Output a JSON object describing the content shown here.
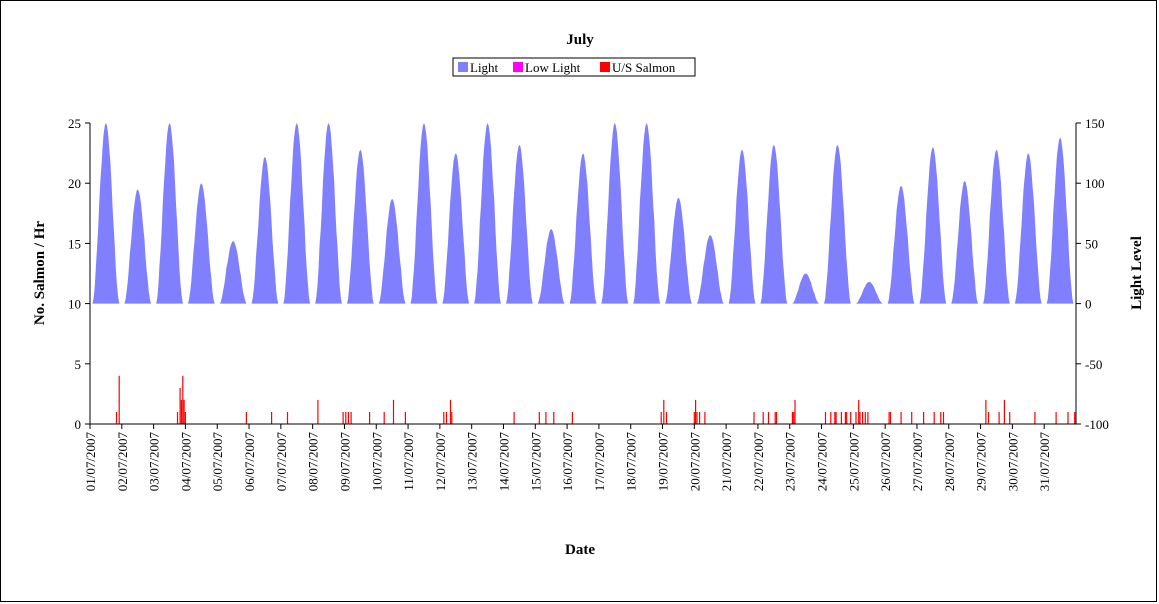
{
  "chart_data": {
    "type": "area",
    "title": "July",
    "xlabel": "Date",
    "ylabel": "No. Salmon / Hr",
    "y2label": "Light Level",
    "legend": {
      "placement": "top-center",
      "entries": [
        {
          "name": "Light",
          "color": "#8080ff"
        },
        {
          "name": "Low Light",
          "color": "#ff00ff"
        },
        {
          "name": "U/S Salmon",
          "color": "#ff0000"
        }
      ]
    },
    "ylim": [
      0,
      25
    ],
    "y_ticks": [
      0,
      5,
      10,
      15,
      20,
      25
    ],
    "y2lim": [
      -100,
      150
    ],
    "y2_ticks": [
      -100,
      -50,
      0,
      50,
      100,
      150
    ],
    "x_tick_labels": [
      "01/07/2007",
      "02/07/2007",
      "03/07/2007",
      "04/07/2007",
      "05/07/2007",
      "06/07/2007",
      "07/07/2007",
      "08/07/2007",
      "09/07/2007",
      "10/07/2007",
      "11/07/2007",
      "12/07/2007",
      "13/07/2007",
      "14/07/2007",
      "15/07/2007",
      "16/07/2007",
      "17/07/2007",
      "18/07/2007",
      "19/07/2007",
      "20/07/2007",
      "21/07/2007",
      "22/07/2007",
      "23/07/2007",
      "24/07/2007",
      "25/07/2007",
      "26/07/2007",
      "27/07/2007",
      "28/07/2007",
      "29/07/2007",
      "30/07/2007",
      "31/07/2007"
    ],
    "grid": false,
    "series": [
      {
        "name": "Light",
        "axis": "right",
        "color": "#8080ff",
        "daily_peak_light": [
          150,
          95,
          150,
          100,
          52,
          122,
          150,
          150,
          128,
          87,
          150,
          125,
          150,
          132,
          62,
          125,
          150,
          150,
          88,
          57,
          128,
          132,
          25,
          132,
          18,
          98,
          130,
          102,
          128,
          125,
          138
        ]
      },
      {
        "name": "U/S Salmon",
        "axis": "left",
        "color": "#ff0000",
        "counts": [
          {
            "date": "01/07/2007",
            "hour": 20,
            "value": 1
          },
          {
            "date": "01/07/2007",
            "hour": 22,
            "value": 4
          },
          {
            "date": "03/07/2007",
            "hour": 18,
            "value": 1
          },
          {
            "date": "03/07/2007",
            "hour": 20,
            "value": 3
          },
          {
            "date": "03/07/2007",
            "hour": 21,
            "value": 2
          },
          {
            "date": "03/07/2007",
            "hour": 22,
            "value": 4
          },
          {
            "date": "03/07/2007",
            "hour": 23,
            "value": 2
          },
          {
            "date": "04/07/2007",
            "hour": 0,
            "value": 1
          },
          {
            "date": "05/07/2007",
            "hour": 22,
            "value": 1
          },
          {
            "date": "06/07/2007",
            "hour": 17,
            "value": 1
          },
          {
            "date": "07/07/2007",
            "hour": 5,
            "value": 1
          },
          {
            "date": "08/07/2007",
            "hour": 4,
            "value": 2
          },
          {
            "date": "08/07/2007",
            "hour": 23,
            "value": 1
          },
          {
            "date": "09/07/2007",
            "hour": 1,
            "value": 1
          },
          {
            "date": "09/07/2007",
            "hour": 3,
            "value": 1
          },
          {
            "date": "09/07/2007",
            "hour": 5,
            "value": 1
          },
          {
            "date": "09/07/2007",
            "hour": 19,
            "value": 1
          },
          {
            "date": "10/07/2007",
            "hour": 6,
            "value": 1
          },
          {
            "date": "10/07/2007",
            "hour": 13,
            "value": 2
          },
          {
            "date": "10/07/2007",
            "hour": 22,
            "value": 1
          },
          {
            "date": "12/07/2007",
            "hour": 3,
            "value": 1
          },
          {
            "date": "12/07/2007",
            "hour": 5,
            "value": 1
          },
          {
            "date": "12/07/2007",
            "hour": 8,
            "value": 2
          },
          {
            "date": "12/07/2007",
            "hour": 9,
            "value": 1
          },
          {
            "date": "14/07/2007",
            "hour": 8,
            "value": 1
          },
          {
            "date": "15/07/2007",
            "hour": 3,
            "value": 1
          },
          {
            "date": "15/07/2007",
            "hour": 8,
            "value": 1
          },
          {
            "date": "15/07/2007",
            "hour": 14,
            "value": 1
          },
          {
            "date": "16/07/2007",
            "hour": 4,
            "value": 1
          },
          {
            "date": "18/07/2007",
            "hour": 23,
            "value": 1
          },
          {
            "date": "19/07/2007",
            "hour": 1,
            "value": 2
          },
          {
            "date": "19/07/2007",
            "hour": 3,
            "value": 1
          },
          {
            "date": "20/07/2007",
            "hour": 0,
            "value": 1
          },
          {
            "date": "20/07/2007",
            "hour": 1,
            "value": 2
          },
          {
            "date": "20/07/2007",
            "hour": 2,
            "value": 1
          },
          {
            "date": "20/07/2007",
            "hour": 4,
            "value": 1
          },
          {
            "date": "20/07/2007",
            "hour": 8,
            "value": 1
          },
          {
            "date": "21/07/2007",
            "hour": 21,
            "value": 1
          },
          {
            "date": "22/07/2007",
            "hour": 4,
            "value": 1
          },
          {
            "date": "22/07/2007",
            "hour": 8,
            "value": 1
          },
          {
            "date": "22/07/2007",
            "hour": 13,
            "value": 1
          },
          {
            "date": "22/07/2007",
            "hour": 14,
            "value": 1
          },
          {
            "date": "23/07/2007",
            "hour": 2,
            "value": 1
          },
          {
            "date": "23/07/2007",
            "hour": 3,
            "value": 1
          },
          {
            "date": "23/07/2007",
            "hour": 4,
            "value": 2
          },
          {
            "date": "24/07/2007",
            "hour": 3,
            "value": 1
          },
          {
            "date": "24/07/2007",
            "hour": 7,
            "value": 1
          },
          {
            "date": "24/07/2007",
            "hour": 10,
            "value": 1
          },
          {
            "date": "24/07/2007",
            "hour": 11,
            "value": 1
          },
          {
            "date": "24/07/2007",
            "hour": 15,
            "value": 1
          },
          {
            "date": "24/07/2007",
            "hour": 18,
            "value": 1
          },
          {
            "date": "24/07/2007",
            "hour": 19,
            "value": 1
          },
          {
            "date": "24/07/2007",
            "hour": 22,
            "value": 1
          },
          {
            "date": "25/07/2007",
            "hour": 2,
            "value": 1
          },
          {
            "date": "25/07/2007",
            "hour": 4,
            "value": 2
          },
          {
            "date": "25/07/2007",
            "hour": 5,
            "value": 1
          },
          {
            "date": "25/07/2007",
            "hour": 7,
            "value": 1
          },
          {
            "date": "25/07/2007",
            "hour": 9,
            "value": 1
          },
          {
            "date": "25/07/2007",
            "hour": 11,
            "value": 1
          },
          {
            "date": "26/07/2007",
            "hour": 3,
            "value": 1
          },
          {
            "date": "26/07/2007",
            "hour": 4,
            "value": 1
          },
          {
            "date": "26/07/2007",
            "hour": 12,
            "value": 1
          },
          {
            "date": "26/07/2007",
            "hour": 20,
            "value": 1
          },
          {
            "date": "27/07/2007",
            "hour": 5,
            "value": 1
          },
          {
            "date": "27/07/2007",
            "hour": 13,
            "value": 1
          },
          {
            "date": "27/07/2007",
            "hour": 18,
            "value": 1
          },
          {
            "date": "27/07/2007",
            "hour": 20,
            "value": 1
          },
          {
            "date": "29/07/2007",
            "hour": 4,
            "value": 2
          },
          {
            "date": "29/07/2007",
            "hour": 6,
            "value": 1
          },
          {
            "date": "29/07/2007",
            "hour": 14,
            "value": 1
          },
          {
            "date": "29/07/2007",
            "hour": 18,
            "value": 2
          },
          {
            "date": "29/07/2007",
            "hour": 22,
            "value": 1
          },
          {
            "date": "30/07/2007",
            "hour": 17,
            "value": 1
          },
          {
            "date": "31/07/2007",
            "hour": 9,
            "value": 1
          },
          {
            "date": "31/07/2007",
            "hour": 18,
            "value": 1
          },
          {
            "date": "31/07/2007",
            "hour": 23,
            "value": 1
          }
        ]
      }
    ]
  }
}
